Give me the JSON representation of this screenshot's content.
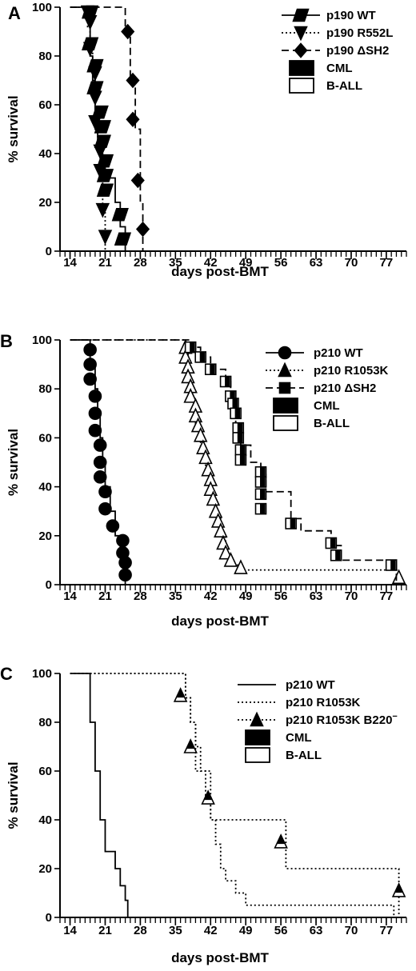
{
  "chart_data": [
    {
      "panel": "A",
      "type": "line",
      "xlabel": "days post-BMT",
      "ylabel": "% survival",
      "xlim": [
        12,
        81
      ],
      "ylim": [
        0,
        100
      ],
      "xticks": [
        14,
        21,
        28,
        35,
        42,
        49,
        56,
        63,
        70,
        77
      ],
      "yticks": [
        0,
        20,
        40,
        60,
        80,
        100
      ],
      "legend": [
        {
          "label": "p190 WT",
          "marker": "parallelogram",
          "dash": "solid"
        },
        {
          "label": "p190 R552L",
          "marker": "triangle-down",
          "dash": "dotted"
        },
        {
          "label": "p190 ΔSH2",
          "marker": "diamond",
          "dash": "dashed"
        },
        {
          "label": "CML",
          "swatch": "filled"
        },
        {
          "label": "B-ALL",
          "swatch": "open"
        }
      ],
      "series": [
        {
          "name": "p190 WT",
          "dash": "solid",
          "marker": "parallelogram",
          "marker_fill": "filled",
          "x": [
            14,
            18,
            18,
            18.5,
            19,
            19,
            19.5,
            20,
            20.5,
            21,
            23,
            24,
            25
          ],
          "y": [
            100,
            100,
            80,
            70,
            60,
            50,
            45,
            40,
            35,
            30,
            20,
            10,
            0
          ],
          "points": [
            [
              18,
              98
            ],
            [
              18,
              85
            ],
            [
              19,
              76
            ],
            [
              19,
              67
            ],
            [
              20,
              57
            ],
            [
              20.5,
              51
            ],
            [
              20.5,
              45
            ],
            [
              21,
              37
            ],
            [
              21,
              31
            ],
            [
              21,
              25
            ],
            [
              24,
              15
            ],
            [
              24.5,
              5
            ]
          ]
        },
        {
          "name": "p190 R552L",
          "dash": "dotted",
          "marker": "triangle-down",
          "marker_fill": "filled",
          "x": [
            14,
            17.5,
            17.5,
            18,
            18.5,
            19,
            19,
            19.5,
            20,
            20.5,
            21
          ],
          "y": [
            100,
            100,
            92,
            83,
            73,
            63,
            53,
            43,
            33,
            17,
            0
          ],
          "points": [
            [
              17.5,
              98
            ],
            [
              18,
              94
            ],
            [
              18,
              83
            ],
            [
              19,
              73
            ],
            [
              19,
              63
            ],
            [
              19,
              53
            ],
            [
              20,
              41
            ],
            [
              20,
              33
            ],
            [
              20.5,
              17
            ],
            [
              21,
              6
            ]
          ]
        },
        {
          "name": "p190 ΔSH2",
          "dash": "dashed",
          "marker": "diamond",
          "marker_fill": "filled",
          "x": [
            14,
            25,
            25,
            26,
            27,
            28,
            28.5
          ],
          "y": [
            100,
            100,
            90,
            70,
            50,
            20,
            0
          ],
          "points": [
            [
              25.5,
              90
            ],
            [
              26.5,
              70
            ],
            [
              26.5,
              54
            ],
            [
              27.5,
              29
            ],
            [
              28.5,
              9
            ]
          ]
        }
      ]
    },
    {
      "panel": "B",
      "type": "line",
      "xlabel": "days post-BMT",
      "ylabel": "% survival",
      "xlim": [
        12,
        81
      ],
      "ylim": [
        0,
        100
      ],
      "xticks": [
        14,
        21,
        28,
        35,
        42,
        49,
        56,
        63,
        70,
        77
      ],
      "yticks": [
        0,
        20,
        40,
        60,
        80,
        100
      ],
      "legend": [
        {
          "label": "p210 WT",
          "marker": "circle",
          "dash": "solid"
        },
        {
          "label": "p210 R1053K",
          "marker": "triangle-up",
          "dash": "dotted"
        },
        {
          "label": "p210 ΔSH2",
          "marker": "square",
          "dash": "dashed"
        },
        {
          "label": "CML",
          "swatch": "filled"
        },
        {
          "label": "B-ALL",
          "swatch": "open"
        }
      ],
      "series": [
        {
          "name": "p210 WT",
          "dash": "solid",
          "marker": "circle",
          "marker_fill": "filled",
          "x": [
            14,
            18,
            18,
            19,
            19.5,
            20,
            20.5,
            21,
            22,
            23,
            24,
            25,
            25
          ],
          "y": [
            100,
            100,
            90,
            80,
            70,
            60,
            50,
            40,
            30,
            20,
            12,
            5,
            0
          ],
          "points": [
            [
              18,
              96
            ],
            [
              18,
              90
            ],
            [
              18,
              84
            ],
            [
              19,
              77
            ],
            [
              19,
              70
            ],
            [
              19,
              63
            ],
            [
              20,
              57
            ],
            [
              20,
              50
            ],
            [
              20,
              44
            ],
            [
              21,
              38
            ],
            [
              21,
              31
            ],
            [
              22.5,
              24
            ],
            [
              24.5,
              18
            ],
            [
              24.5,
              13
            ],
            [
              25,
              9
            ],
            [
              25,
              4
            ]
          ]
        },
        {
          "name": "p210 R1053K",
          "dash": "dotted",
          "marker": "triangle-up",
          "marker_fill": "open",
          "x": [
            14,
            37,
            37,
            37.5,
            38,
            39,
            40,
            41,
            42,
            43,
            44,
            45,
            46,
            48,
            78,
            79.5
          ],
          "y": [
            100,
            100,
            95,
            85,
            75,
            65,
            55,
            45,
            37,
            28,
            20,
            12,
            8,
            6,
            6,
            0
          ],
          "points": [
            [
              37,
              97
            ],
            [
              37,
              93
            ],
            [
              37.5,
              89
            ],
            [
              37.5,
              85
            ],
            [
              38,
              81
            ],
            [
              38,
              77
            ],
            [
              39,
              73
            ],
            [
              39,
              69
            ],
            [
              39.5,
              65
            ],
            [
              40,
              61
            ],
            [
              40.5,
              56
            ],
            [
              41,
              52
            ],
            [
              41.5,
              47
            ],
            [
              42,
              43
            ],
            [
              42,
              39
            ],
            [
              42.5,
              35
            ],
            [
              43,
              30
            ],
            [
              43.5,
              26
            ],
            [
              44,
              22
            ],
            [
              44.5,
              17
            ],
            [
              45,
              13
            ],
            [
              46,
              10
            ],
            [
              48,
              7
            ],
            [
              79.5,
              3
            ]
          ]
        },
        {
          "name": "p210 ΔSH2",
          "dash": "dashed",
          "marker": "square",
          "marker_fill": "mixed",
          "x": [
            14,
            38,
            38,
            40,
            42,
            45,
            46,
            47,
            48,
            50,
            52,
            53,
            58,
            60,
            66,
            68,
            78,
            79
          ],
          "y": [
            100,
            100,
            97,
            93,
            88,
            83,
            77,
            65,
            57,
            50,
            45,
            38,
            27,
            22,
            16,
            10,
            8,
            0
          ],
          "points": [
            [
              38,
              97
            ],
            [
              40,
              93
            ],
            [
              42,
              88
            ],
            [
              45,
              83
            ],
            [
              46,
              77
            ],
            [
              46.5,
              74
            ],
            [
              47,
              70
            ],
            [
              47.5,
              64
            ],
            [
              47.5,
              60
            ],
            [
              48,
              55
            ],
            [
              48,
              51
            ],
            [
              52,
              46
            ],
            [
              52,
              42
            ],
            [
              52,
              37
            ],
            [
              52,
              31
            ],
            [
              58,
              25
            ],
            [
              66,
              17
            ],
            [
              67,
              12
            ],
            [
              78,
              8
            ]
          ]
        }
      ]
    },
    {
      "panel": "C",
      "type": "line",
      "xlabel": "days post-BMT",
      "ylabel": "% survival",
      "xlim": [
        12,
        81
      ],
      "ylim": [
        0,
        100
      ],
      "xticks": [
        14,
        21,
        28,
        35,
        42,
        49,
        56,
        63,
        70,
        77
      ],
      "yticks": [
        0,
        20,
        40,
        60,
        80,
        100
      ],
      "legend": [
        {
          "label": "p210 WT",
          "dash": "solid"
        },
        {
          "label": "p210 R1053K",
          "dash": "dotted"
        },
        {
          "label": "p210 R1053K B220",
          "label_sup": "−",
          "marker": "triangle-up",
          "dash": "dotted"
        },
        {
          "label": "CML",
          "swatch": "filled"
        },
        {
          "label": "B-ALL",
          "swatch": "open"
        }
      ],
      "series": [
        {
          "name": "p210 WT",
          "dash": "solid",
          "x": [
            14,
            18,
            18,
            19,
            20,
            21,
            22,
            23,
            24,
            25,
            25.5
          ],
          "y": [
            100,
            100,
            80,
            60,
            40,
            27,
            27,
            20,
            13,
            7,
            0
          ]
        },
        {
          "name": "p210 R1053K",
          "dash": "dotted",
          "x": [
            14,
            37,
            37,
            38,
            39,
            40,
            41,
            42,
            43,
            44,
            45,
            47,
            49,
            78,
            78.5
          ],
          "y": [
            100,
            100,
            90,
            80,
            70,
            60,
            50,
            40,
            30,
            20,
            15,
            10,
            5,
            5,
            0
          ]
        },
        {
          "name": "p210 R1053K B220−",
          "dash": "dotted",
          "marker": "triangle-up",
          "marker_fill": "mixed",
          "x": [
            14,
            37,
            37,
            38,
            39,
            41,
            42,
            56,
            57,
            79,
            79.5
          ],
          "y": [
            100,
            100,
            90,
            80,
            60,
            60,
            40,
            40,
            20,
            20,
            0
          ],
          "points": [
            [
              36,
              91
            ],
            [
              38,
              70
            ],
            [
              41.5,
              49
            ],
            [
              56,
              31
            ],
            [
              79.5,
              11
            ]
          ]
        }
      ]
    }
  ]
}
